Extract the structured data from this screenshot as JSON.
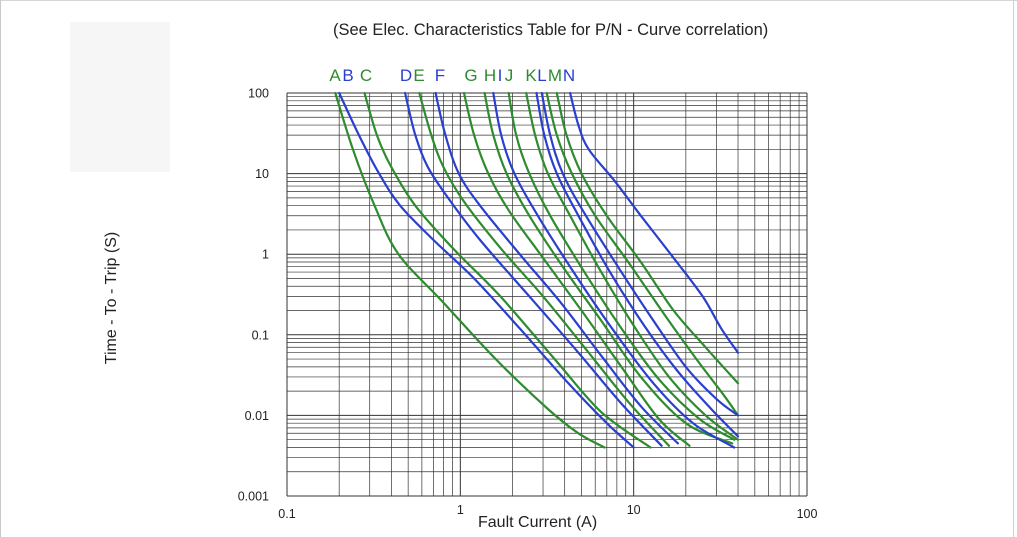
{
  "colors": {
    "green": "#2e8b2e",
    "blue": "#2a3fcf",
    "grid": "#333333",
    "text": "#222222"
  },
  "chart_data": {
    "type": "line",
    "title": "(See Elec. Characteristics Table for P/N - Curve correlation)",
    "xlabel": "Fault Current (A)",
    "ylabel": "Time - To - Trip (S)",
    "x_scale": "log",
    "y_scale": "log",
    "xlim": [
      0.1,
      100
    ],
    "ylim": [
      0.001,
      100
    ],
    "x_ticks": [
      "0.1",
      "1",
      "10",
      "100"
    ],
    "y_ticks": [
      "0.001",
      "0.01",
      "0.1",
      "1",
      "10",
      "100"
    ],
    "grid": true,
    "series": [
      {
        "name": "A",
        "color": "green",
        "points": [
          [
            0.19,
            100
          ],
          [
            0.24,
            20
          ],
          [
            0.32,
            4
          ],
          [
            0.44,
            1
          ],
          [
            0.8,
            0.25
          ],
          [
            1.6,
            0.05
          ],
          [
            3.2,
            0.012
          ],
          [
            4.8,
            0.006
          ],
          [
            6.8,
            0.004
          ]
        ]
      },
      {
        "name": "B",
        "color": "blue",
        "points": [
          [
            0.2,
            100
          ],
          [
            0.26,
            30
          ],
          [
            0.34,
            10
          ],
          [
            0.45,
            4
          ],
          [
            0.7,
            1.5
          ],
          [
            1.2,
            0.5
          ],
          [
            2.2,
            0.12
          ],
          [
            4.2,
            0.025
          ],
          [
            7,
            0.008
          ],
          [
            10,
            0.004
          ]
        ]
      },
      {
        "name": "C",
        "color": "green",
        "points": [
          [
            0.28,
            100
          ],
          [
            0.33,
            30
          ],
          [
            0.4,
            12
          ],
          [
            0.55,
            4
          ],
          [
            0.9,
            1.2
          ],
          [
            1.7,
            0.3
          ],
          [
            3.5,
            0.05
          ],
          [
            6.5,
            0.011
          ],
          [
            12.5,
            0.004
          ]
        ]
      },
      {
        "name": "D",
        "color": "blue",
        "points": [
          [
            0.48,
            100
          ],
          [
            0.55,
            30
          ],
          [
            0.65,
            12
          ],
          [
            0.85,
            5
          ],
          [
            1.3,
            1.5
          ],
          [
            2.5,
            0.3
          ],
          [
            4.8,
            0.06
          ],
          [
            8.5,
            0.014
          ],
          [
            14.5,
            0.0042
          ]
        ]
      },
      {
        "name": "E",
        "color": "green",
        "points": [
          [
            0.58,
            100
          ],
          [
            0.68,
            30
          ],
          [
            0.8,
            12
          ],
          [
            1.05,
            4.5
          ],
          [
            1.7,
            1.2
          ],
          [
            3,
            0.3
          ],
          [
            5.5,
            0.06
          ],
          [
            9.5,
            0.014
          ],
          [
            16,
            0.0042
          ]
        ]
      },
      {
        "name": "F",
        "color": "blue",
        "points": [
          [
            0.72,
            100
          ],
          [
            0.82,
            30
          ],
          [
            0.98,
            10
          ],
          [
            1.3,
            4
          ],
          [
            2.2,
            1
          ],
          [
            3.8,
            0.25
          ],
          [
            6.5,
            0.055
          ],
          [
            11,
            0.013
          ],
          [
            18,
            0.0045
          ]
        ]
      },
      {
        "name": "G",
        "color": "green",
        "points": [
          [
            1.05,
            100
          ],
          [
            1.2,
            30
          ],
          [
            1.45,
            10
          ],
          [
            1.9,
            3.5
          ],
          [
            3,
            0.9
          ],
          [
            5,
            0.2
          ],
          [
            8.5,
            0.04
          ],
          [
            14,
            0.009
          ],
          [
            21,
            0.0042
          ]
        ]
      },
      {
        "name": "H",
        "color": "green",
        "points": [
          [
            1.38,
            100
          ],
          [
            1.55,
            30
          ],
          [
            1.85,
            10
          ],
          [
            2.5,
            3
          ],
          [
            3.9,
            0.7
          ],
          [
            6.5,
            0.15
          ],
          [
            11,
            0.03
          ],
          [
            20,
            0.008
          ],
          [
            37,
            0.0045
          ]
        ]
      },
      {
        "name": "I",
        "color": "blue",
        "points": [
          [
            1.55,
            100
          ],
          [
            1.72,
            30
          ],
          [
            2.05,
            10
          ],
          [
            2.8,
            3
          ],
          [
            4.5,
            0.6
          ],
          [
            7.5,
            0.12
          ],
          [
            13,
            0.025
          ],
          [
            22,
            0.008
          ],
          [
            38,
            0.004
          ]
        ]
      },
      {
        "name": "J",
        "color": "green",
        "points": [
          [
            1.9,
            100
          ],
          [
            2.1,
            30
          ],
          [
            2.5,
            10
          ],
          [
            3.3,
            3
          ],
          [
            5.2,
            0.6
          ],
          [
            8.5,
            0.12
          ],
          [
            14,
            0.028
          ],
          [
            24,
            0.009
          ],
          [
            38,
            0.005
          ]
        ]
      },
      {
        "name": "K",
        "color": "green",
        "points": [
          [
            2.4,
            100
          ],
          [
            2.7,
            30
          ],
          [
            3.2,
            10
          ],
          [
            4.3,
            3
          ],
          [
            6.5,
            0.6
          ],
          [
            10,
            0.13
          ],
          [
            16,
            0.03
          ],
          [
            26,
            0.01
          ],
          [
            40,
            0.005
          ]
        ]
      },
      {
        "name": "L",
        "color": "blue",
        "points": [
          [
            2.75,
            100
          ],
          [
            3.05,
            30
          ],
          [
            3.6,
            10
          ],
          [
            4.8,
            3
          ],
          [
            7.3,
            0.6
          ],
          [
            11.5,
            0.13
          ],
          [
            18,
            0.035
          ],
          [
            28,
            0.012
          ],
          [
            40,
            0.0055
          ]
        ]
      },
      {
        "name": "M",
        "color": "green",
        "points": [
          [
            3.15,
            100
          ],
          [
            3.6,
            30
          ],
          [
            4.4,
            10
          ],
          [
            6,
            3
          ],
          [
            9.5,
            0.75
          ],
          [
            15,
            0.18
          ],
          [
            23,
            0.05
          ],
          [
            33,
            0.018
          ],
          [
            40,
            0.01
          ]
        ]
      },
      {
        "name": "N",
        "color": "blue",
        "points": [
          [
            4.3,
            100
          ],
          [
            4.8,
            40
          ],
          [
            5.5,
            20
          ],
          [
            7.8,
            8
          ],
          [
            11,
            3
          ],
          [
            17,
            0.9
          ],
          [
            25,
            0.3
          ],
          [
            32,
            0.12
          ],
          [
            40,
            0.06
          ]
        ]
      },
      {
        "name": "",
        "color": "green",
        "points": [
          [
            3.6,
            100
          ],
          [
            4.1,
            30
          ],
          [
            5,
            10
          ],
          [
            7,
            3
          ],
          [
            11,
            0.8
          ],
          [
            17,
            0.2
          ],
          [
            26,
            0.07
          ],
          [
            40,
            0.025
          ]
        ]
      },
      {
        "name": "",
        "color": "blue",
        "points": [
          [
            2.95,
            100
          ],
          [
            3.3,
            30
          ],
          [
            3.9,
            10
          ],
          [
            5.3,
            3
          ],
          [
            8.3,
            0.65
          ],
          [
            13,
            0.15
          ],
          [
            20,
            0.04
          ],
          [
            30,
            0.016
          ],
          [
            40,
            0.01
          ]
        ]
      }
    ],
    "legend_labels": [
      {
        "text": "A",
        "color": "green"
      },
      {
        "text": "B",
        "color": "blue"
      },
      {
        "text": "C",
        "color": "green"
      },
      {
        "text": "D",
        "color": "blue"
      },
      {
        "text": "E",
        "color": "green"
      },
      {
        "text": "F",
        "color": "blue"
      },
      {
        "text": "G",
        "color": "green"
      },
      {
        "text": "H",
        "color": "green"
      },
      {
        "text": "I",
        "color": "blue"
      },
      {
        "text": "J",
        "color": "green"
      },
      {
        "text": "K",
        "color": "green"
      },
      {
        "text": "L",
        "color": "blue"
      },
      {
        "text": "M",
        "color": "green"
      },
      {
        "text": "N",
        "color": "blue"
      }
    ]
  }
}
